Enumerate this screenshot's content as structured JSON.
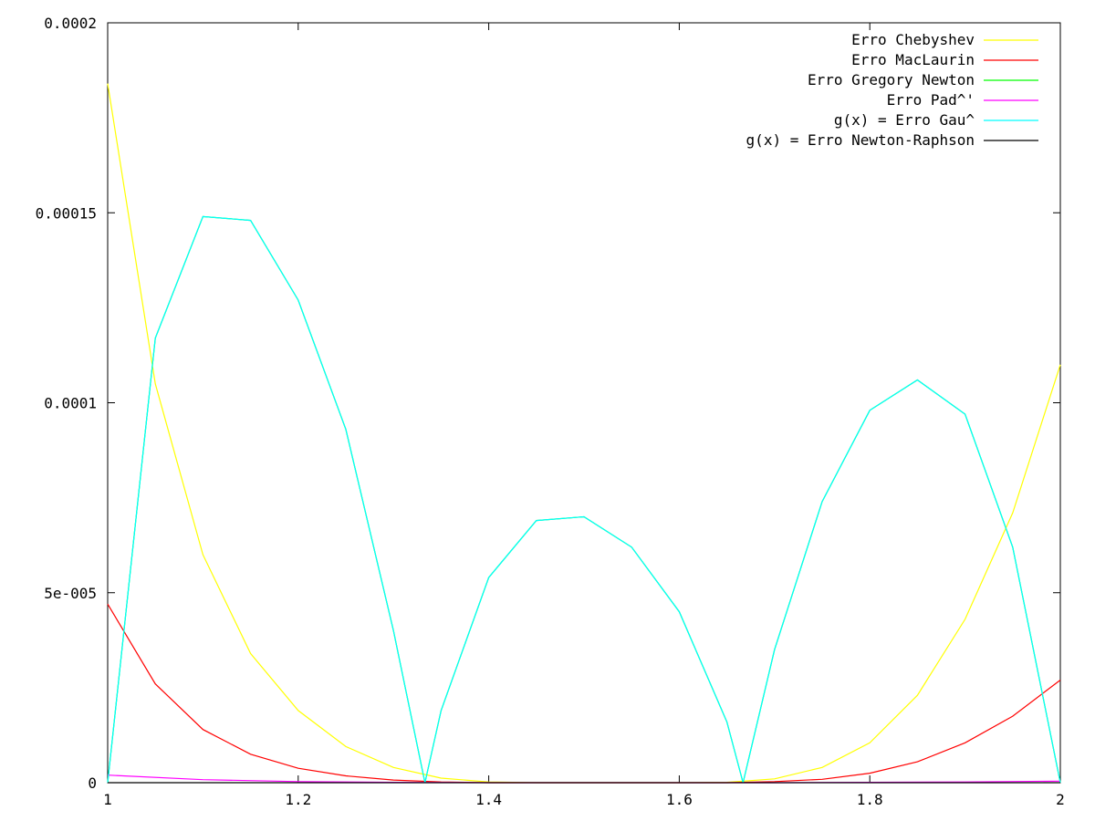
{
  "chart_data": {
    "type": "line",
    "title": "",
    "xlabel": "",
    "ylabel": "",
    "xlim": [
      1,
      2
    ],
    "ylim": [
      0,
      0.0002
    ],
    "x_ticks": [
      1,
      1.2,
      1.4,
      1.6,
      1.8,
      2
    ],
    "x_tick_labels": [
      "1",
      "1.2",
      "1.4",
      "1.6",
      "1.8",
      "2"
    ],
    "y_ticks": [
      0,
      5e-05,
      0.0001,
      0.00015,
      0.0002
    ],
    "y_tick_labels": [
      "0",
      "5e-005",
      "0.0001",
      "0.00015",
      "0.0002"
    ],
    "grid": false,
    "legend_position": "top-right",
    "series": [
      {
        "name": "Erro Chebyshev",
        "color": "#ffff00",
        "x": [
          1,
          1.05,
          1.1,
          1.15,
          1.2,
          1.25,
          1.3,
          1.35,
          1.4,
          1.45,
          1.5,
          1.55,
          1.6,
          1.65,
          1.7,
          1.75,
          1.8,
          1.85,
          1.9,
          1.95,
          2
        ],
        "y": [
          0.000184,
          0.000105,
          6e-05,
          3.4e-05,
          1.9e-05,
          9.5e-06,
          4e-06,
          1.2e-06,
          2e-07,
          0,
          0,
          0,
          0,
          1e-07,
          1e-06,
          4e-06,
          1.05e-05,
          2.3e-05,
          4.3e-05,
          7.1e-05,
          0.00011
        ]
      },
      {
        "name": "Erro MacLaurin",
        "color": "#ff0000",
        "x": [
          1,
          1.05,
          1.1,
          1.15,
          1.2,
          1.25,
          1.3,
          1.35,
          1.4,
          1.45,
          1.5,
          1.55,
          1.6,
          1.65,
          1.7,
          1.75,
          1.8,
          1.85,
          1.9,
          1.95,
          2
        ],
        "y": [
          4.7e-05,
          2.6e-05,
          1.4e-05,
          7.5e-06,
          3.8e-06,
          1.8e-06,
          7e-07,
          2e-07,
          0,
          0,
          0,
          0,
          0,
          0,
          3e-07,
          9e-07,
          2.5e-06,
          5.5e-06,
          1.05e-05,
          1.75e-05,
          2.7e-05
        ]
      },
      {
        "name": "Erro Gregory Newton",
        "color": "#00ff00",
        "x": [
          1,
          1.05,
          1.1,
          1.15,
          1.2,
          1.25,
          1.3,
          1.333,
          1.35,
          1.4,
          1.45,
          1.5,
          1.55,
          1.6,
          1.65,
          1.667,
          1.7,
          1.75,
          1.8,
          1.85,
          1.9,
          1.95,
          2
        ],
        "y": [
          0,
          0.000117,
          0.000149,
          0.000148,
          0.000127,
          9.3e-05,
          4e-05,
          0,
          1.9e-05,
          5.4e-05,
          6.9e-05,
          7e-05,
          6.2e-05,
          4.5e-05,
          1.6e-05,
          0,
          3.5e-05,
          7.4e-05,
          9.8e-05,
          0.000106,
          9.7e-05,
          6.2e-05,
          0
        ]
      },
      {
        "name": "Erro Pad^'",
        "color": "#ff00ff",
        "x": [
          1,
          1.1,
          1.2,
          1.3,
          1.4,
          1.5,
          1.6,
          1.7,
          1.8,
          1.9,
          2
        ],
        "y": [
          2e-06,
          8e-07,
          3e-07,
          1e-07,
          0,
          0,
          0,
          0,
          1e-07,
          2e-07,
          4e-07
        ]
      },
      {
        "name": "g(x) = Erro Gau^",
        "color": "#00ffff",
        "x": [
          1,
          1.05,
          1.1,
          1.15,
          1.2,
          1.25,
          1.3,
          1.333,
          1.35,
          1.4,
          1.45,
          1.5,
          1.55,
          1.6,
          1.65,
          1.667,
          1.7,
          1.75,
          1.8,
          1.85,
          1.9,
          1.95,
          2
        ],
        "y": [
          0,
          0.000117,
          0.000149,
          0.000148,
          0.000127,
          9.3e-05,
          4e-05,
          0,
          1.9e-05,
          5.4e-05,
          6.9e-05,
          7e-05,
          6.2e-05,
          4.5e-05,
          1.6e-05,
          0,
          3.5e-05,
          7.4e-05,
          9.8e-05,
          0.000106,
          9.7e-05,
          6.2e-05,
          0
        ]
      },
      {
        "name": "g(x) = Erro Newton-Raphson",
        "color": "#000000",
        "x": [
          1,
          1.5,
          2
        ],
        "y": [
          0,
          0,
          0
        ]
      }
    ]
  }
}
